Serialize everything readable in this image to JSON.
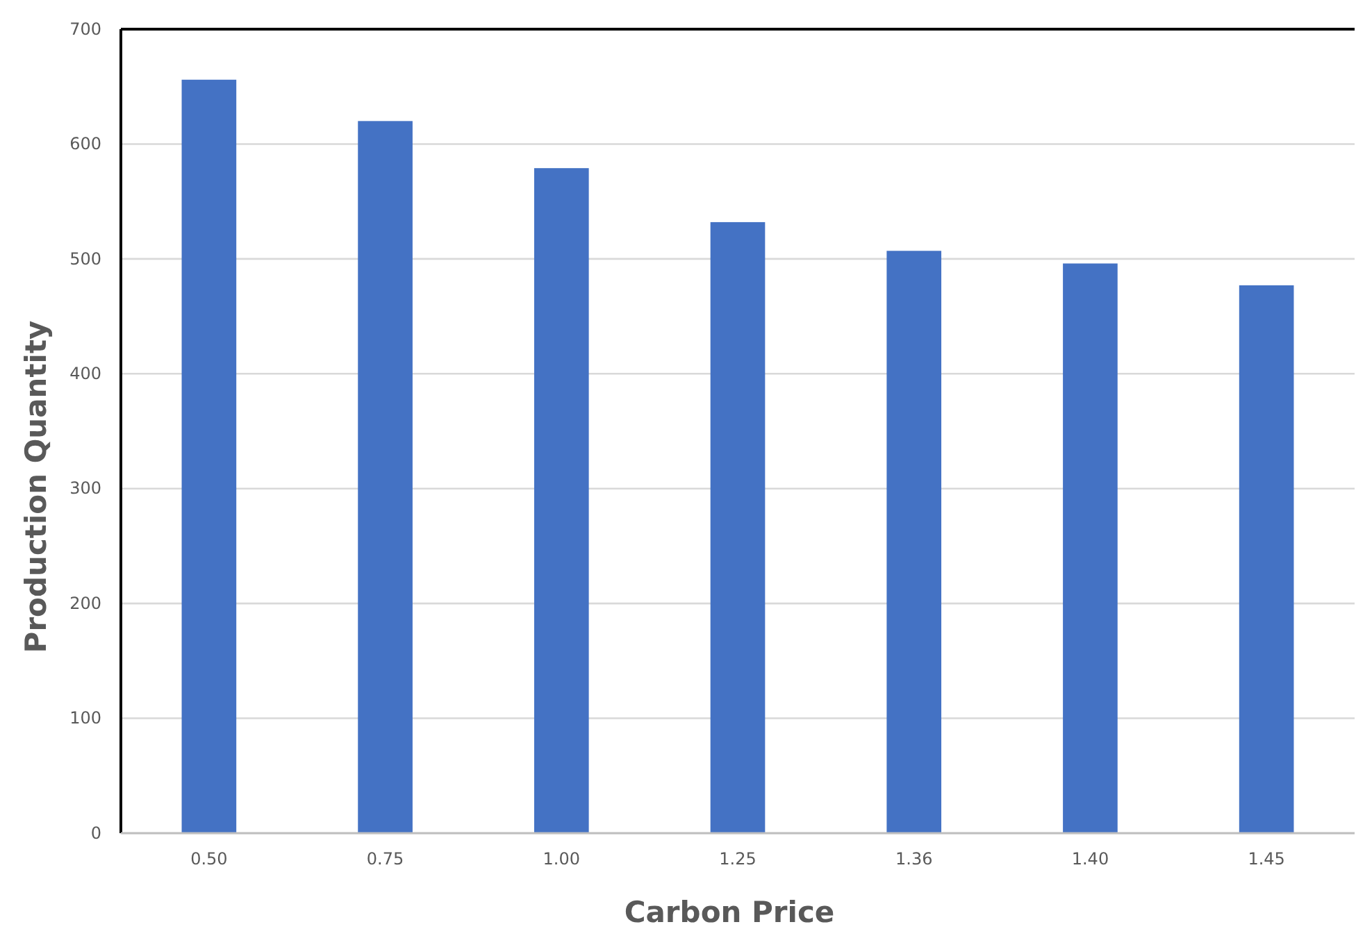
{
  "chart_data": {
    "type": "bar",
    "xlabel": "Carbon Price",
    "ylabel": "Production Quantity",
    "categories": [
      "0.50",
      "0.75",
      "1.00",
      "1.25",
      "1.36",
      "1.40",
      "1.45"
    ],
    "values": [
      656,
      620,
      579,
      532,
      507,
      496,
      477
    ],
    "color": "#4472c4",
    "ylim": [
      0,
      700
    ],
    "yticks": [
      0,
      100,
      200,
      300,
      400,
      500,
      600,
      700
    ],
    "grid": "y"
  }
}
